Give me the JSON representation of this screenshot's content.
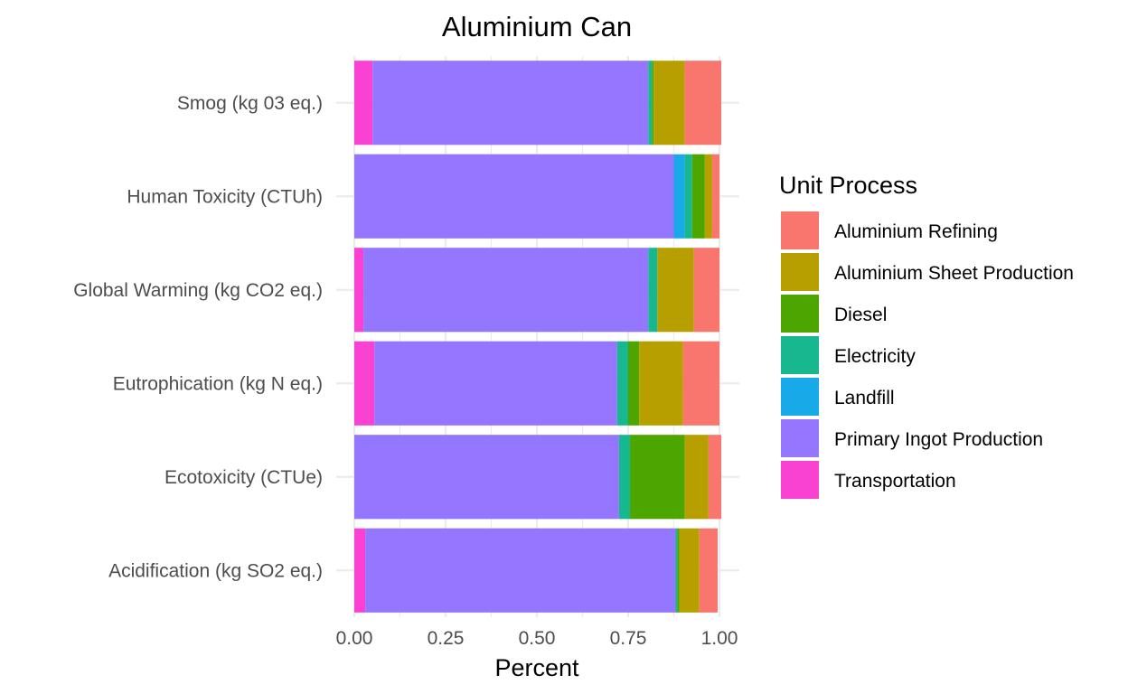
{
  "chart_data": {
    "type": "bar",
    "orientation": "horizontal",
    "stacked": true,
    "title": "Aluminium Can",
    "xlabel": "Percent",
    "ylabel": "",
    "xlim": [
      0,
      1
    ],
    "x_ticks": [
      "0.00",
      "0.25",
      "0.50",
      "0.75",
      "1.00"
    ],
    "categories": [
      "Acidification (kg SO2 eq.)",
      "Ecotoxicity (CTUe)",
      "Eutrophication (kg N eq.)",
      "Global Warming (kg CO2 eq.)",
      "Human Toxicity (CTUh)",
      "Smog (kg 03 eq.)"
    ],
    "stack_order": [
      "Transportation",
      "Primary Ingot Production",
      "Landfill",
      "Electricity",
      "Diesel",
      "Aluminium Sheet Production",
      "Aluminium Refining"
    ],
    "series": [
      {
        "name": "Aluminium Refining",
        "color": "#F8766D",
        "values": [
          0.05,
          0.035,
          0.1,
          0.07,
          0.02,
          0.1
        ]
      },
      {
        "name": "Aluminium Sheet Production",
        "color": "#B79F00",
        "values": [
          0.055,
          0.065,
          0.12,
          0.1,
          0.02,
          0.085
        ]
      },
      {
        "name": "Diesel",
        "color": "#4DA600",
        "values": [
          0.005,
          0.15,
          0.03,
          0.0,
          0.035,
          0.005
        ]
      },
      {
        "name": "Electricity",
        "color": "#17B890",
        "values": [
          0.005,
          0.03,
          0.03,
          0.025,
          0.02,
          0.01
        ]
      },
      {
        "name": "Landfill",
        "color": "#18A9E8",
        "values": [
          0.0,
          0.0,
          0.0,
          0.0,
          0.03,
          0.0
        ]
      },
      {
        "name": "Primary Ingot Production",
        "color": "#9476FF",
        "values": [
          0.85,
          0.725,
          0.665,
          0.78,
          0.875,
          0.755
        ]
      },
      {
        "name": "Transportation",
        "color": "#F942D1",
        "values": [
          0.03,
          0.0,
          0.055,
          0.025,
          0.0,
          0.05
        ]
      }
    ],
    "legend": {
      "title": "Unit Process",
      "placement": "right",
      "entries": [
        "Aluminium Refining",
        "Aluminium Sheet Production",
        "Diesel",
        "Electricity",
        "Landfill",
        "Primary Ingot Production",
        "Transportation"
      ]
    },
    "grid": true,
    "background": "#FFFFFF"
  }
}
